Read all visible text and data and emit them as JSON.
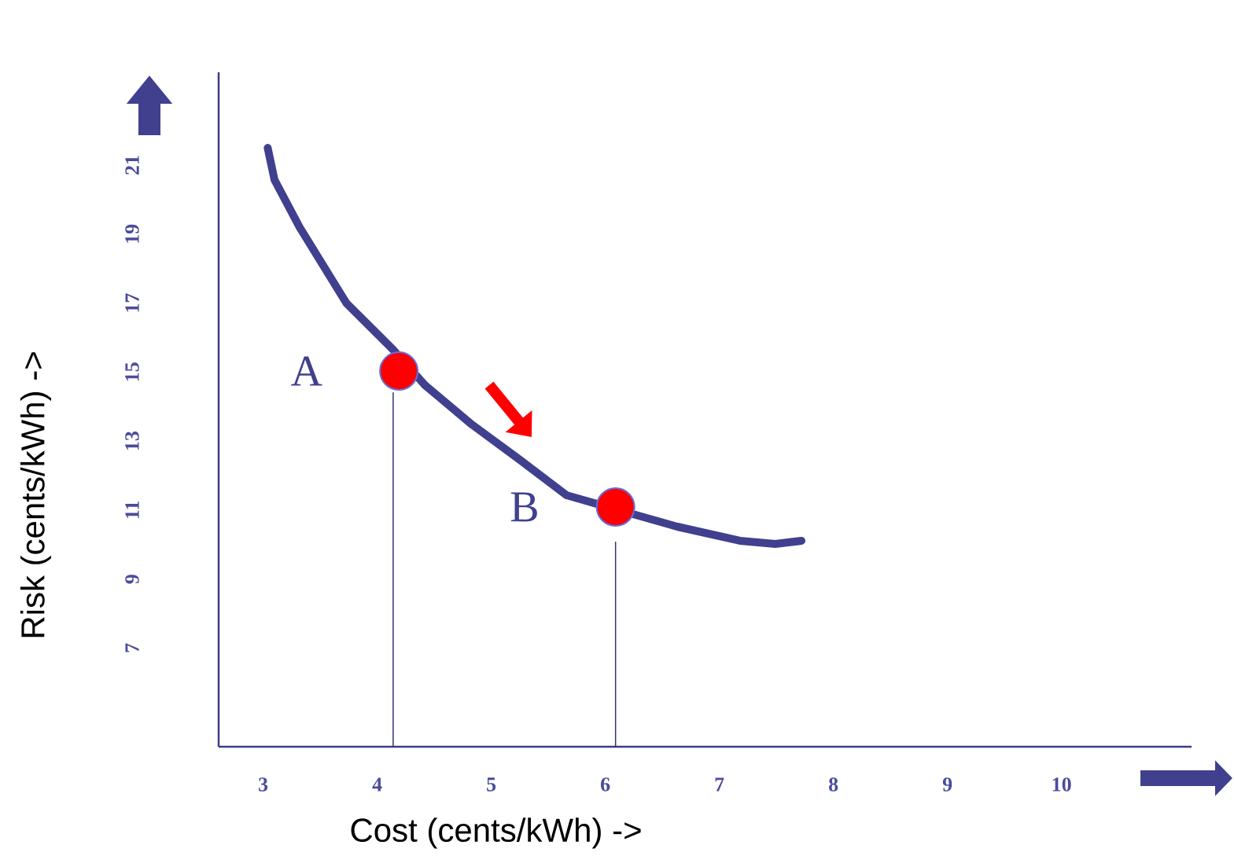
{
  "chart_data": {
    "type": "line",
    "xlabel": "Cost (cents/kWh) ->",
    "ylabel": "Risk (cents/kWh) ->",
    "xlim": [
      2.61,
      11.14
    ],
    "ylim": [
      4.14,
      23.69
    ],
    "xticks": [
      3,
      4,
      5,
      6,
      7,
      8,
      9,
      10
    ],
    "yticks": [
      7,
      9,
      11,
      13,
      15,
      17,
      19,
      21
    ],
    "line_style": "solid",
    "annotations": [
      {
        "text": "A",
        "x": 4.19,
        "y": 15.03
      },
      {
        "text": "B",
        "x": 6.09,
        "y": 11.09
      }
    ],
    "series": [
      {
        "color": "#40408f",
        "x": [
          3.04,
          3.1,
          3.32,
          3.73,
          4.14,
          4.42,
          4.83,
          5.25,
          5.66,
          6.63,
          7.18,
          7.49,
          7.72
        ],
        "values": [
          21.5,
          20.57,
          19.2,
          17.0,
          15.65,
          14.62,
          13.48,
          12.46,
          11.43,
          10.52,
          10.11,
          10.02,
          10.11
        ]
      },
      {
        "color": "#333377",
        "x": [
          4.14,
          4.14
        ],
        "values": [
          4.14,
          14.4
        ]
      },
      {
        "color": "#333377",
        "x": [
          6.09,
          6.09
        ],
        "values": [
          4.14,
          10.07
        ]
      },
      {
        "type": "scatter",
        "color": "#ff0000",
        "marker": "circle",
        "x": [
          4.19,
          6.09
        ],
        "values": [
          15.03,
          11.09
        ]
      }
    ]
  }
}
